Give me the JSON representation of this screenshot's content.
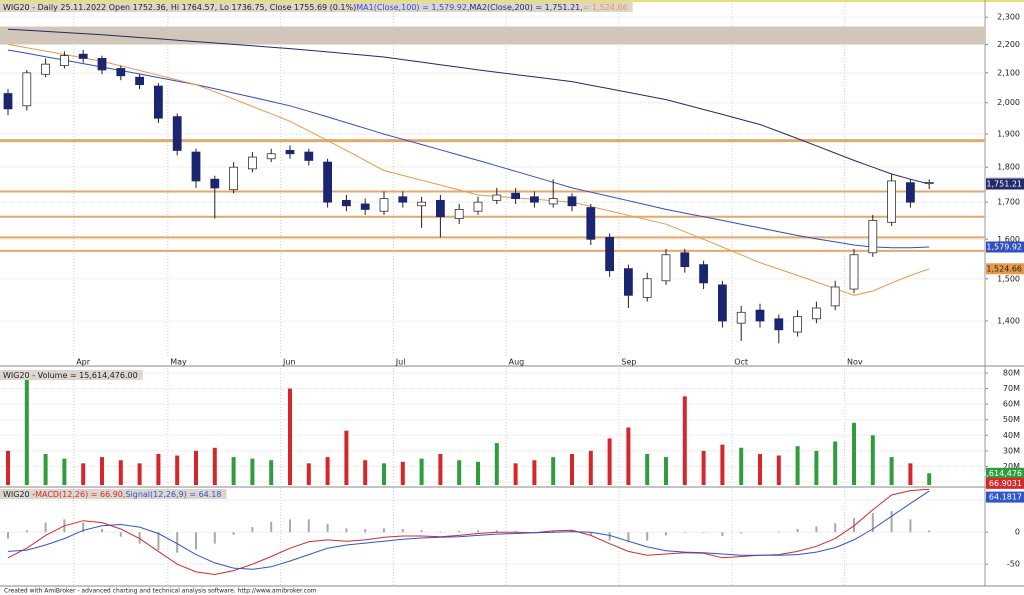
{
  "chart_data": [
    {
      "type": "candlestick",
      "title": "WIG20 - Daily 25.11.2022 Open 1752.36, Hi 1764.57, Lo 1736.75, Close 1755.69 (0.1%)",
      "categories": [
        null,
        null,
        null,
        null,
        "Apr",
        null,
        null,
        null,
        null,
        "May",
        null,
        null,
        null,
        null,
        null,
        "Jun",
        null,
        null,
        null,
        null,
        null,
        "Jul",
        null,
        null,
        null,
        null,
        null,
        "Aug",
        null,
        null,
        null,
        null,
        null,
        "Sep",
        null,
        null,
        null,
        null,
        null,
        "Oct",
        null,
        null,
        null,
        null,
        null,
        "Nov",
        null,
        null,
        null,
        null
      ],
      "open": [
        2030,
        1990,
        2095,
        2125,
        2165,
        2150,
        2115,
        2085,
        2055,
        1955,
        1845,
        1765,
        1735,
        1795,
        1825,
        1850,
        1845,
        1815,
        1705,
        1695,
        1675,
        1715,
        1690,
        1705,
        1655,
        1675,
        1705,
        1725,
        1715,
        1695,
        1715,
        1685,
        1605,
        1525,
        1455,
        1495,
        1565,
        1535,
        1485,
        1395,
        1425,
        1405,
        1375,
        1405,
        1435,
        1475,
        1565,
        1645,
        1755,
        1752.36
      ],
      "high": [
        2045,
        2110,
        2150,
        2175,
        2180,
        2160,
        2125,
        2095,
        2065,
        1965,
        1855,
        1775,
        1815,
        1845,
        1855,
        1865,
        1855,
        1825,
        1720,
        1710,
        1730,
        1730,
        1715,
        1720,
        1695,
        1715,
        1740,
        1740,
        1730,
        1765,
        1725,
        1695,
        1615,
        1535,
        1515,
        1575,
        1575,
        1545,
        1495,
        1435,
        1440,
        1415,
        1425,
        1445,
        1495,
        1575,
        1665,
        1780,
        1765,
        1764.57
      ],
      "low": [
        1960,
        1975,
        2085,
        2115,
        2135,
        2095,
        2075,
        2045,
        1935,
        1835,
        1740,
        1655,
        1725,
        1785,
        1815,
        1825,
        1805,
        1685,
        1675,
        1665,
        1665,
        1685,
        1630,
        1605,
        1640,
        1665,
        1695,
        1695,
        1685,
        1685,
        1675,
        1585,
        1505,
        1430,
        1445,
        1485,
        1515,
        1475,
        1385,
        1355,
        1385,
        1350,
        1365,
        1395,
        1425,
        1465,
        1555,
        1635,
        1685,
        1736.75
      ],
      "close": [
        1980,
        2100,
        2130,
        2160,
        2150,
        2110,
        2090,
        2060,
        1950,
        1850,
        1760,
        1740,
        1800,
        1830,
        1840,
        1840,
        1820,
        1700,
        1690,
        1680,
        1710,
        1700,
        1700,
        1660,
        1680,
        1700,
        1720,
        1710,
        1700,
        1710,
        1690,
        1600,
        1520,
        1460,
        1500,
        1560,
        1530,
        1490,
        1400,
        1420,
        1400,
        1380,
        1410,
        1430,
        1480,
        1560,
        1650,
        1760,
        1700,
        1755.69
      ],
      "end_label": "1,755.69",
      "up_color": "#ffffff",
      "down_color": "#1c2570",
      "color": "#1c2570",
      "log": true,
      "grid": true,
      "ylim": [
        1320,
        2350
      ],
      "yticks": [
        {
          "value": 1400,
          "label": "1,400"
        },
        {
          "value": 1500,
          "label": "1,500"
        },
        {
          "value": 1600,
          "label": "1,600"
        },
        {
          "value": 1700,
          "label": "1,700"
        },
        {
          "value": 1800,
          "label": "1,800"
        },
        {
          "value": 1900,
          "label": "1,900"
        },
        {
          "value": 2000,
          "label": "2,000"
        },
        {
          "value": 2100,
          "label": "2,100"
        },
        {
          "value": 2200,
          "label": "2,200"
        },
        {
          "value": 2300,
          "label": "2,300"
        }
      ],
      "zone": [
        2200,
        2265
      ],
      "zone_color": "#d2c6bb",
      "levels": [
        1880,
        1730,
        1660,
        1605,
        1570
      ],
      "level_color": "#e2a96a",
      "series": [
        {
          "name": "MA1(Close,100) = 1,579.92,",
          "color": "#2f4fc0",
          "end_label": "1,579.92",
          "values": [
            2180,
            2168,
            2156,
            2144,
            2132,
            2120,
            2108,
            2096,
            2084,
            2072,
            2060,
            2046,
            2032,
            2018,
            2004,
            1990,
            1972,
            1954,
            1936,
            1918,
            1900,
            1884,
            1868,
            1852,
            1836,
            1820,
            1804,
            1788,
            1772,
            1756,
            1740,
            1728,
            1716,
            1704,
            1692,
            1680,
            1670,
            1660,
            1650,
            1640,
            1630,
            1620,
            1610,
            1601,
            1593,
            1585,
            1580,
            1578,
            1578,
            1579.92
          ]
        },
        {
          "name": "MA2(Close,200) = 1,751.21,",
          "color": "#232a6a",
          "end_label": "1,751.21",
          "values": [
            2255,
            2251,
            2247,
            2243,
            2239,
            2235,
            2230,
            2225,
            2220,
            2215,
            2210,
            2205,
            2200,
            2195,
            2190,
            2185,
            2179,
            2173,
            2167,
            2161,
            2155,
            2146,
            2137,
            2128,
            2119,
            2110,
            2102,
            2094,
            2086,
            2078,
            2070,
            2058,
            2046,
            2034,
            2022,
            2010,
            1994,
            1978,
            1962,
            1946,
            1930,
            1908,
            1886,
            1864,
            1842,
            1820,
            1800,
            1780,
            1765,
            1751.21
          ]
        },
        {
          "name": "= 1,524.66",
          "color": "#e89a4a",
          "end_label": "1,524.66",
          "values": [
            2200,
            2188,
            2176,
            2164,
            2152,
            2140,
            2124,
            2108,
            2092,
            2076,
            2060,
            2036,
            2012,
            1988,
            1964,
            1940,
            1910,
            1880,
            1850,
            1820,
            1790,
            1776,
            1762,
            1748,
            1734,
            1720,
            1716,
            1712,
            1708,
            1704,
            1700,
            1688,
            1676,
            1664,
            1652,
            1640,
            1620,
            1600,
            1580,
            1560,
            1540,
            1524,
            1508,
            1492,
            1476,
            1460,
            1470,
            1490,
            1508,
            1524.66
          ]
        }
      ]
    },
    {
      "type": "volume",
      "title": "WIG20 - Volume = 15,614,476.00",
      "end_label": "15,614,476",
      "up_color": "#2f9e3a",
      "down_color": "#d7262b",
      "grid": true,
      "ylim": [
        8100000,
        83200000
      ],
      "yticks": [
        {
          "value": 10000000,
          "label": "10M"
        },
        {
          "value": 20000000,
          "label": "20M"
        },
        {
          "value": 30000000,
          "label": "30M"
        },
        {
          "value": 40000000,
          "label": "40M"
        },
        {
          "value": 50000000,
          "label": "50M"
        },
        {
          "value": 60000000,
          "label": "60M"
        },
        {
          "value": 70000000,
          "label": "70M"
        },
        {
          "value": 80000000,
          "label": "80M"
        }
      ],
      "values": [
        30000000,
        80000000,
        28000000,
        25000000,
        22000000,
        26000000,
        24000000,
        22000000,
        28000000,
        27000000,
        30000000,
        32000000,
        26000000,
        25000000,
        24000000,
        70000000,
        22000000,
        26000000,
        43000000,
        24000000,
        22000000,
        23000000,
        25000000,
        28000000,
        24000000,
        23000000,
        35000000,
        22000000,
        24000000,
        26000000,
        28000000,
        30000000,
        38000000,
        45000000,
        28000000,
        26000000,
        65000000,
        30000000,
        34000000,
        32000000,
        28000000,
        27000000,
        33000000,
        30000000,
        36000000,
        48000000,
        40000000,
        26000000,
        22000000,
        15614476
      ]
    },
    {
      "type": "macd",
      "title": "WIG20 -",
      "grid": true,
      "ylim": [
        -84,
        69
      ],
      "yticks": [
        -50,
        0,
        50
      ],
      "histogram": {
        "color": "#a8a8a8",
        "values": [
          -10,
          3,
          15,
          20,
          15,
          5,
          -7,
          -18,
          -28,
          -32,
          -27,
          -18,
          -4,
          8,
          16,
          20,
          20,
          13,
          6,
          5,
          6,
          5,
          3,
          1,
          2,
          3,
          3,
          2,
          0,
          2,
          2,
          -5,
          -13,
          -16,
          -13,
          -5,
          -1,
          -1,
          -6,
          -2,
          0,
          1,
          5,
          9,
          14,
          22,
          30,
          33,
          20,
          2.72
        ]
      },
      "series": [
        {
          "name": "MACD(12,26) = 66.90,",
          "color": "#d62a2a",
          "end_label": "66.9031",
          "values": [
            -40,
            -25,
            -5,
            10,
            18,
            15,
            5,
            -10,
            -30,
            -50,
            -62,
            -66,
            -60,
            -50,
            -38,
            -25,
            -15,
            -12,
            -14,
            -12,
            -8,
            -6,
            -6,
            -7,
            -5,
            -2,
            0,
            0,
            -1,
            2,
            3,
            -5,
            -18,
            -30,
            -36,
            -34,
            -32,
            -33,
            -40,
            -38,
            -36,
            -35,
            -30,
            -22,
            -10,
            10,
            35,
            58,
            65,
            66.9
          ]
        },
        {
          "name": "Signal(12,26,9) = 64.18",
          "color": "#2f55c8",
          "end_label": "64.1817",
          "values": [
            -30,
            -28,
            -20,
            -10,
            3,
            10,
            12,
            8,
            -2,
            -18,
            -35,
            -48,
            -56,
            -58,
            -54,
            -45,
            -35,
            -25,
            -20,
            -17,
            -14,
            -11,
            -9,
            -8,
            -7,
            -5,
            -3,
            -2,
            -1,
            0,
            1,
            0,
            -5,
            -14,
            -23,
            -29,
            -31,
            -32,
            -34,
            -36,
            -36,
            -36,
            -35,
            -31,
            -24,
            -12,
            5,
            25,
            45,
            64.18
          ]
        }
      ]
    }
  ],
  "footer": "Created with AmiBroker - advanced charting and technical analysis software. http://www.amibroker.com"
}
